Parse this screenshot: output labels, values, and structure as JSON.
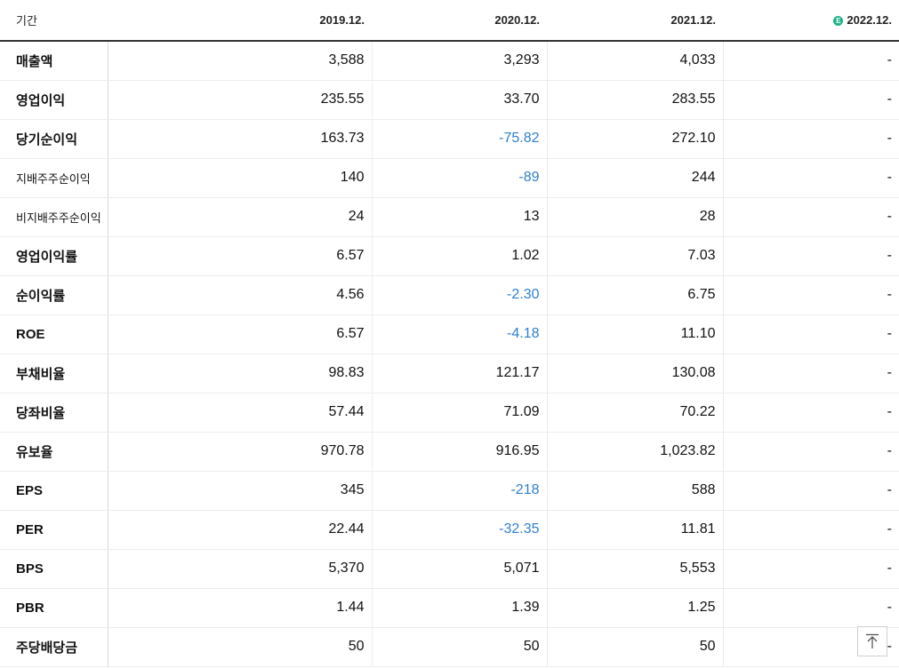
{
  "header": {
    "label": "기간",
    "periods": [
      "2019.12.",
      "2020.12.",
      "2021.12.",
      "2022.12."
    ],
    "estimate_badge": "E"
  },
  "rows": [
    {
      "label": "매출액",
      "values": [
        "3,588",
        "3,293",
        "4,033",
        "-"
      ]
    },
    {
      "label": "영업이익",
      "values": [
        "235.55",
        "33.70",
        "283.55",
        "-"
      ]
    },
    {
      "label": "당기순이익",
      "values": [
        "163.73",
        "-75.82",
        "272.10",
        "-"
      ]
    },
    {
      "label": "지배주주순이익",
      "values": [
        "140",
        "-89",
        "244",
        "-"
      ]
    },
    {
      "label": "비지배주주순이익",
      "values": [
        "24",
        "13",
        "28",
        "-"
      ]
    },
    {
      "label": "영업이익률",
      "values": [
        "6.57",
        "1.02",
        "7.03",
        "-"
      ]
    },
    {
      "label": "순이익률",
      "values": [
        "4.56",
        "-2.30",
        "6.75",
        "-"
      ]
    },
    {
      "label": "ROE",
      "values": [
        "6.57",
        "-4.18",
        "11.10",
        "-"
      ]
    },
    {
      "label": "부채비율",
      "values": [
        "98.83",
        "121.17",
        "130.08",
        "-"
      ]
    },
    {
      "label": "당좌비율",
      "values": [
        "57.44",
        "71.09",
        "70.22",
        "-"
      ]
    },
    {
      "label": "유보율",
      "values": [
        "970.78",
        "916.95",
        "1,023.82",
        "-"
      ]
    },
    {
      "label": "EPS",
      "values": [
        "345",
        "-218",
        "588",
        "-"
      ]
    },
    {
      "label": "PER",
      "values": [
        "22.44",
        "-32.35",
        "11.81",
        "-"
      ]
    },
    {
      "label": "BPS",
      "values": [
        "5,370",
        "5,071",
        "5,553",
        "-"
      ]
    },
    {
      "label": "PBR",
      "values": [
        "1.44",
        "1.39",
        "1.25",
        "-"
      ]
    },
    {
      "label": "주당배당금",
      "values": [
        "50",
        "50",
        "50",
        "-"
      ]
    }
  ],
  "colors": {
    "negative": "#2f7fd0",
    "estimate_badge": "#1fb388"
  },
  "scroll_top_icon": "arrow-up-to-top-icon"
}
